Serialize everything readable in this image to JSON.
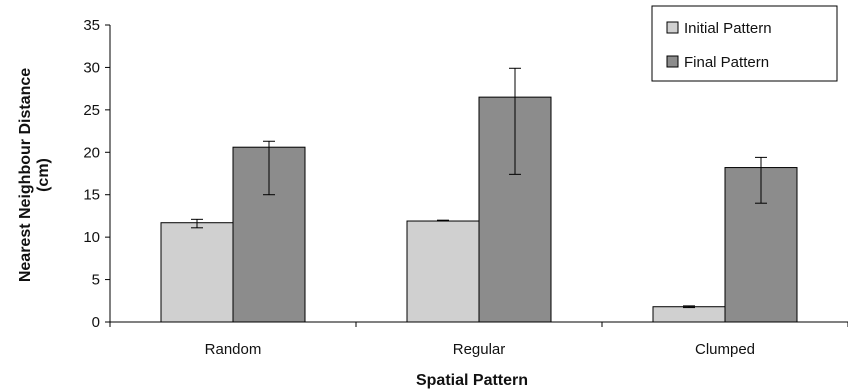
{
  "chart_data": {
    "type": "bar",
    "categories": [
      "Random",
      "Regular",
      "Clumped"
    ],
    "series": [
      {
        "name": "Initial Pattern",
        "color": "#d0d0d0",
        "values": [
          11.7,
          11.9,
          1.8
        ],
        "error_low": [
          11.1,
          11.9,
          1.7
        ],
        "error_high": [
          12.1,
          12.0,
          1.9
        ]
      },
      {
        "name": "Final Pattern",
        "color": "#8c8c8c",
        "values": [
          20.6,
          26.5,
          18.2
        ],
        "error_low": [
          15.0,
          17.4,
          14.0
        ],
        "error_high": [
          21.3,
          29.9,
          19.4
        ]
      }
    ],
    "xlabel": "Spatial Pattern",
    "ylabel_lines": [
      "Nearest Neighbour Distance",
      "(cm)"
    ],
    "ylim": [
      0,
      35
    ],
    "yticks": [
      0,
      5,
      10,
      15,
      20,
      25,
      30,
      35
    ],
    "grid": false,
    "legend_position": "top-right"
  }
}
